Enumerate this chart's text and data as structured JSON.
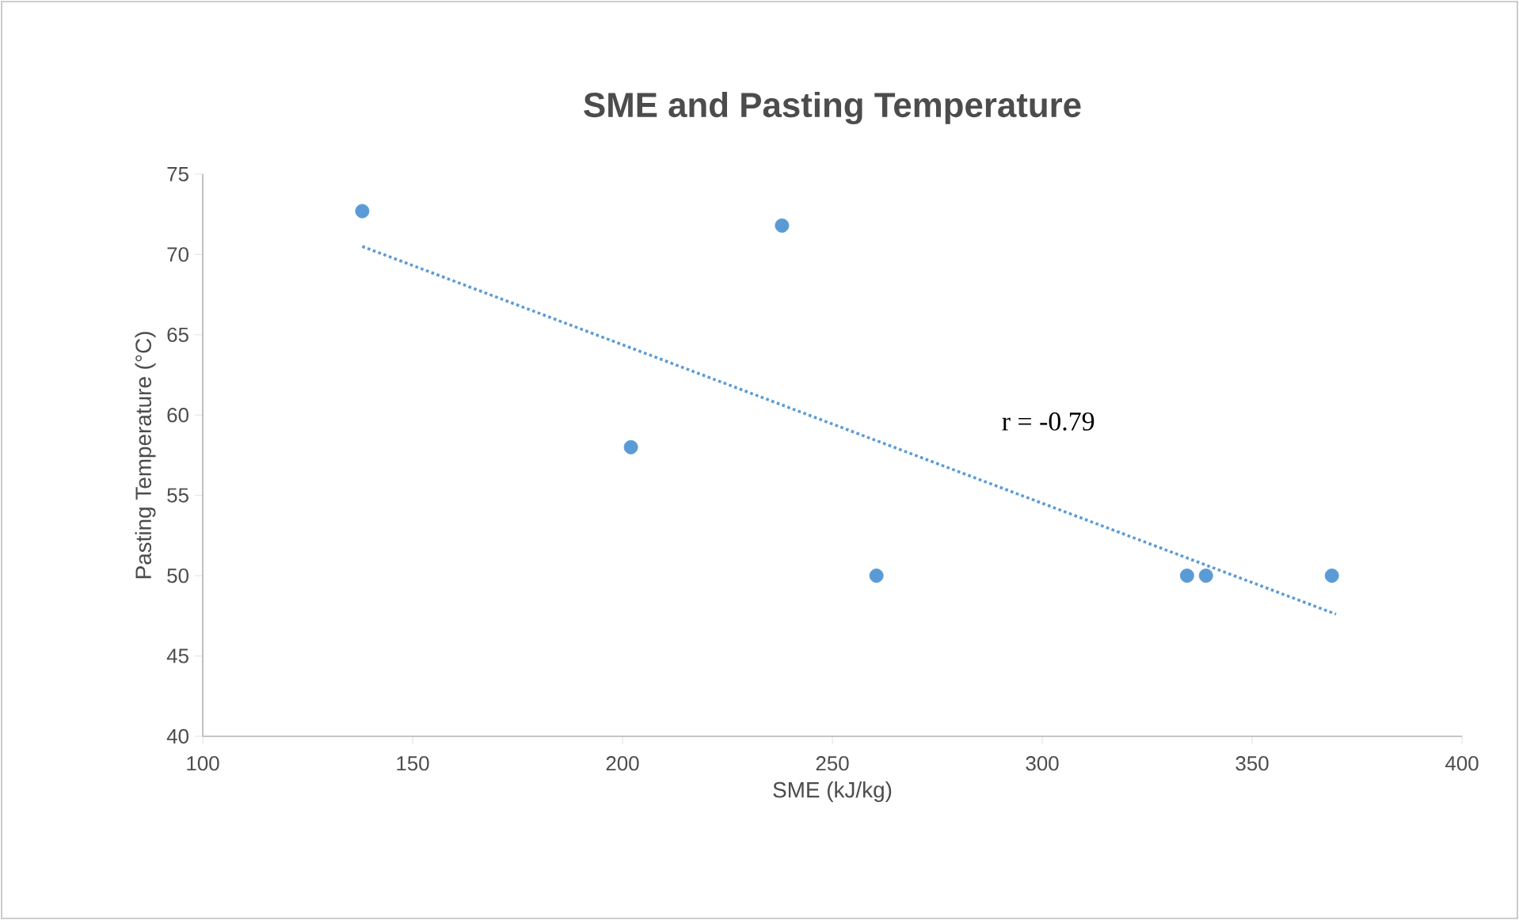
{
  "chart_data": {
    "type": "scatter",
    "title": "SME and Pasting Temperature",
    "xlabel": "SME (kJ/kg)",
    "ylabel": "Pasting Temperature (°C)",
    "annotations": [
      "r = -0.79"
    ],
    "xlim": [
      100,
      400
    ],
    "xticks": [
      100,
      150,
      200,
      250,
      300,
      350,
      400
    ],
    "ylim": [
      40,
      75
    ],
    "yticks": [
      40,
      45,
      50,
      55,
      60,
      65,
      70,
      75
    ],
    "grid": false,
    "series": [
      {
        "marker": "circle",
        "color": "#5b9bd5",
        "x": [
          138,
          238,
          202,
          260.5,
          334.5,
          339,
          369
        ],
        "values": [
          72.7,
          71.8,
          58,
          50,
          50,
          50,
          50
        ]
      },
      {
        "type": "line",
        "color": "#5b9bd5",
        "line_style": "dotted",
        "marker": "none",
        "x": [
          138,
          370
        ],
        "values": [
          70.5,
          47.6
        ]
      }
    ]
  }
}
